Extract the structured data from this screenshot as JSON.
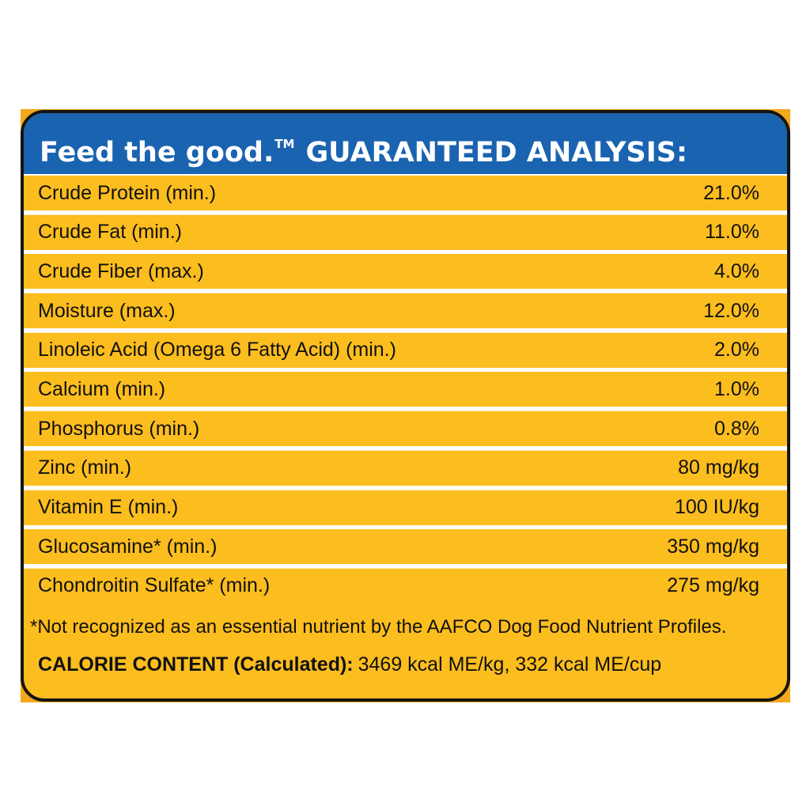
{
  "header": {
    "brand": "Feed the good.",
    "trademark": "TM",
    "title": "GUARANTEED ANALYSIS:"
  },
  "colors": {
    "header_blue": "#1a63b0",
    "panel_yellow": "#fcbd1e",
    "border": "#141414",
    "divider": "#ffffff"
  },
  "rows": [
    {
      "label": "Crude Protein (min.)",
      "value": "21.0%"
    },
    {
      "label": "Crude Fat (min.)",
      "value": "11.0%"
    },
    {
      "label": "Crude Fiber (max.)",
      "value": "4.0%"
    },
    {
      "label": "Moisture (max.)",
      "value": "12.0%"
    },
    {
      "label": "Linoleic Acid (Omega 6 Fatty Acid) (min.)",
      "value": "2.0%"
    },
    {
      "label": "Calcium (min.)",
      "value": "1.0%"
    },
    {
      "label": "Phosphorus (min.)",
      "value": "0.8%"
    },
    {
      "label": "Zinc (min.)",
      "value": "80 mg/kg"
    },
    {
      "label": "Vitamin E (min.)",
      "value": "100 IU/kg"
    },
    {
      "label": "Glucosamine* (min.)",
      "value": "350 mg/kg"
    },
    {
      "label": "Chondroitin Sulfate* (min.)",
      "value": "275 mg/kg"
    }
  ],
  "footnote": "*Not recognized as an essential nutrient by the AAFCO Dog Food Nutrient Profiles.",
  "calorie": {
    "label": "CALORIE CONTENT (Calculated):",
    "value": "3469 kcal ME/kg, 332 kcal ME/cup"
  }
}
